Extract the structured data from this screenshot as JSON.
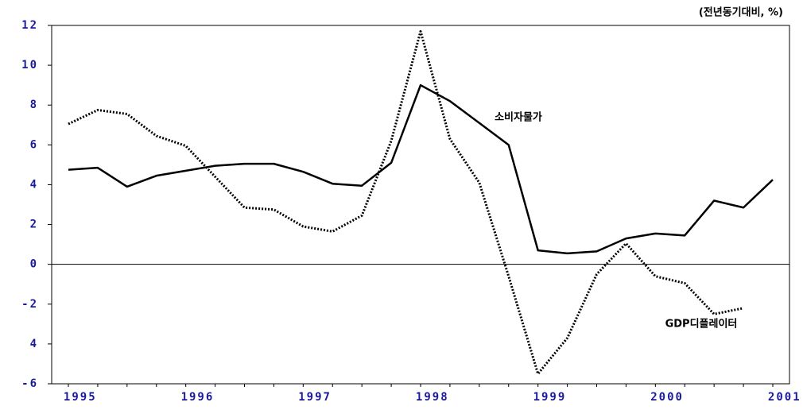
{
  "chart_data": {
    "type": "line",
    "annotations": [
      "(전년동기대비,  %)",
      "소비자물가",
      "GDP디플레이터"
    ],
    "categories": [
      "1995",
      null,
      null,
      null,
      "1996",
      null,
      null,
      null,
      "1997",
      null,
      null,
      null,
      "1998",
      null,
      null,
      null,
      "1999",
      null,
      null,
      null,
      "2000",
      null,
      null,
      null,
      "2001"
    ],
    "series": [
      {
        "name": "소비자물가",
        "color": "#000000",
        "line_style": "solid",
        "values": [
          4.75,
          4.85,
          3.9,
          4.45,
          4.7,
          4.95,
          5.05,
          5.05,
          4.65,
          4.05,
          3.95,
          5.1,
          9.0,
          8.2,
          7.1,
          6.0,
          0.7,
          0.55,
          0.65,
          1.3,
          1.55,
          1.45,
          3.2,
          2.85,
          4.25
        ]
      },
      {
        "name": "GDP디플레이터",
        "color": "#000000",
        "line_style": "dotted",
        "values": [
          7.05,
          7.75,
          7.55,
          6.45,
          5.95,
          4.4,
          2.85,
          2.75,
          1.9,
          1.65,
          2.45,
          6.2,
          11.7,
          6.3,
          4.1,
          -0.6,
          -5.5,
          -3.7,
          -0.5,
          1.05,
          -0.6,
          -0.95,
          -2.5,
          -2.2,
          null
        ]
      }
    ],
    "ylim": [
      -6,
      12
    ],
    "yticks": [
      12,
      10,
      8,
      6,
      4,
      2,
      0,
      -2,
      {
        "value": -4,
        "label": "4"
      },
      -6
    ],
    "zero_line": true
  }
}
